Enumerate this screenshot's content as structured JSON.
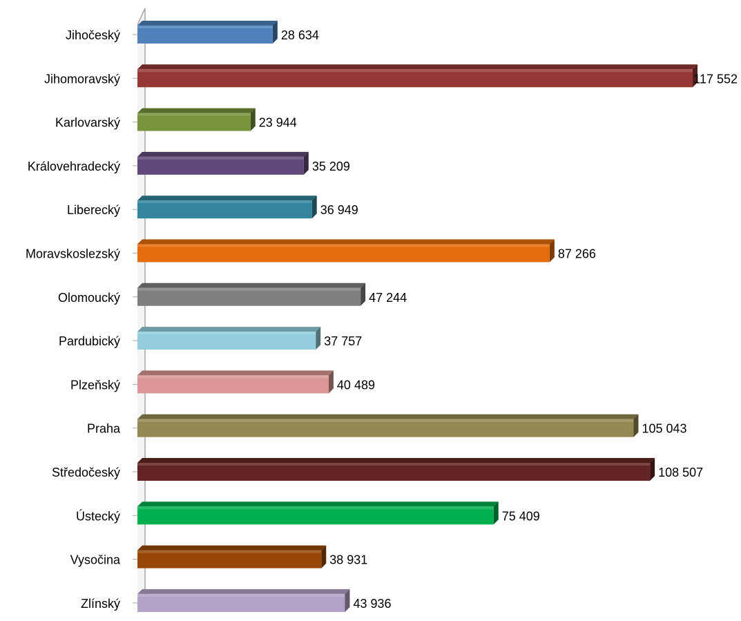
{
  "chart_data": {
    "type": "bar",
    "orientation": "horizontal",
    "categories": [
      "Jihočeský",
      "Jihomoravský",
      "Karlovarský",
      "Královehradecký",
      "Liberecký",
      "Moravskoslezský",
      "Olomoucký",
      "Pardubický",
      "Plzeňský",
      "Praha",
      "Středočeský",
      "Ústecký",
      "Vysočina",
      "Zlínský"
    ],
    "values": [
      28634,
      117552,
      23944,
      35209,
      36949,
      87266,
      47244,
      37757,
      40489,
      105043,
      108507,
      75409,
      38931,
      43936
    ],
    "value_labels": [
      "28 634",
      "117 552",
      "23 944",
      "35 209",
      "36 949",
      "87 266",
      "47 244",
      "37 757",
      "40 489",
      "105 043",
      "108 507",
      "75 409",
      "38 931",
      "43 936"
    ],
    "colors": [
      "#4f81bd",
      "#953735",
      "#77933c",
      "#604a7b",
      "#31859c",
      "#e46c0a",
      "#7f7f7f",
      "#93cddd",
      "#d99694",
      "#938953",
      "#632523",
      "#00b050",
      "#974806",
      "#b2a1c7"
    ],
    "xlim": [
      0,
      117552
    ],
    "title": "",
    "xlabel": "",
    "ylabel": "",
    "grid": false,
    "legend": "none",
    "style": "3d"
  }
}
